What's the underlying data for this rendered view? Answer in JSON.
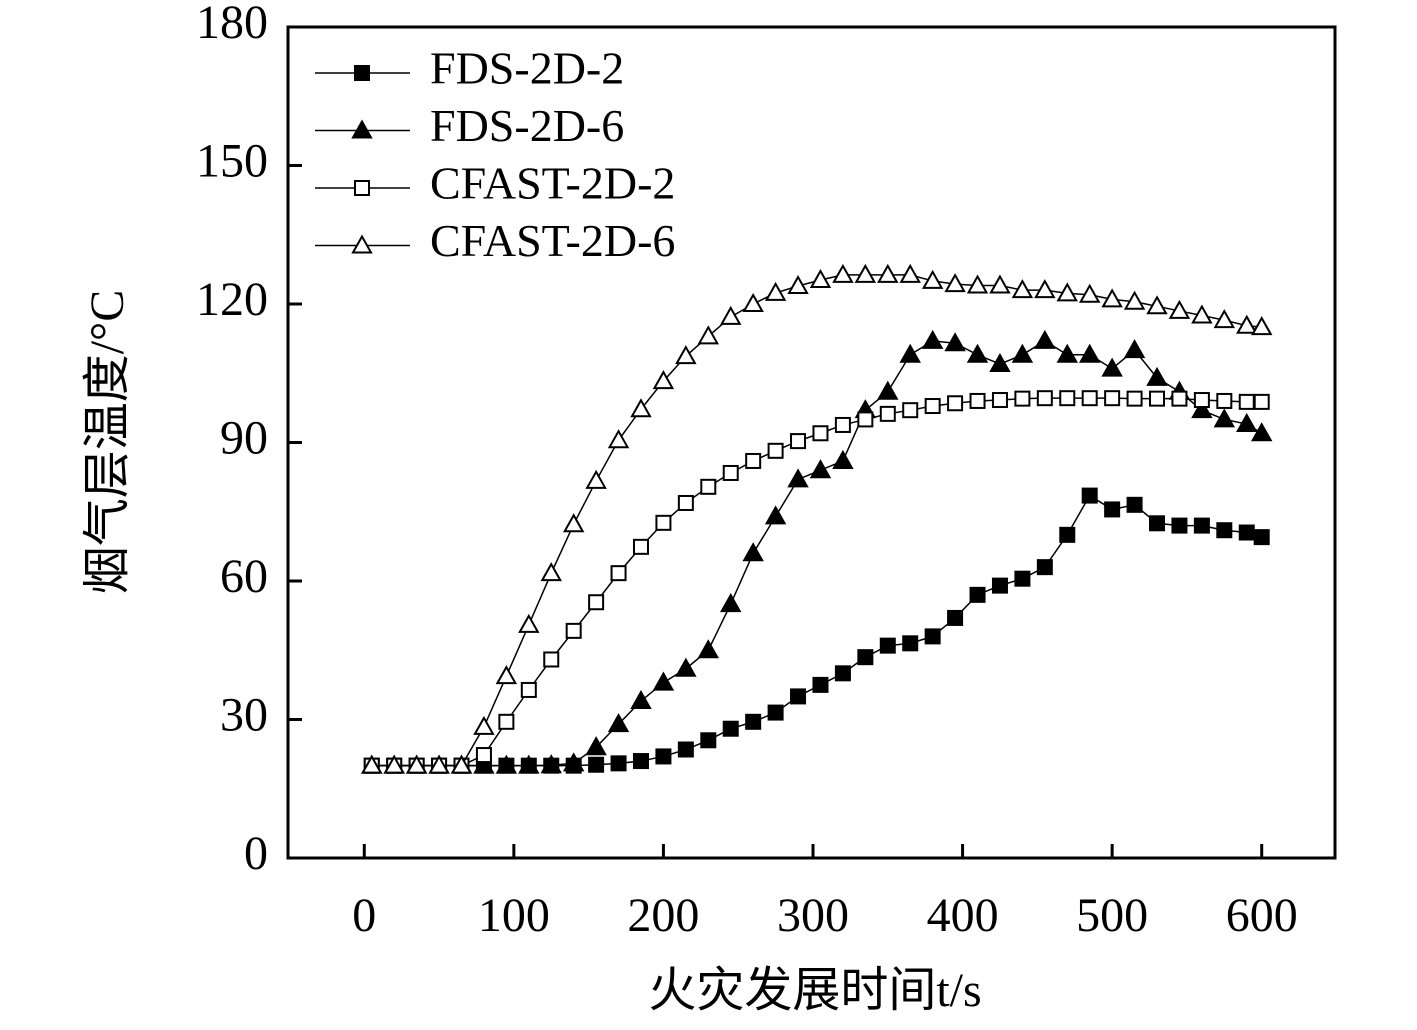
{
  "chart_data": {
    "type": "line",
    "xlabel": "火灾发展时间t/s",
    "ylabel": "烟气层温度/°C",
    "x": [
      5,
      20,
      35,
      50,
      65,
      80,
      95,
      110,
      125,
      140,
      155,
      170,
      185,
      200,
      215,
      230,
      245,
      260,
      275,
      290,
      305,
      320,
      335,
      350,
      365,
      380,
      395,
      410,
      425,
      440,
      455,
      470,
      485,
      500,
      515,
      530,
      545,
      560,
      575,
      590,
      600
    ],
    "series": [
      {
        "name": "FDS-2D-2",
        "color": "#000000",
        "marker": "square",
        "filled": true,
        "values": [
          20,
          20,
          20,
          20,
          20,
          20,
          20,
          20,
          20,
          20,
          20.2,
          20.5,
          21,
          22,
          23.5,
          25.5,
          28,
          29.5,
          31.5,
          35,
          37.5,
          40,
          43.5,
          46,
          46.5,
          48,
          52,
          57,
          59,
          60.5,
          63,
          70,
          78.5,
          75.5,
          76.5,
          72.5,
          72,
          72,
          71,
          70.5,
          69.5
        ]
      },
      {
        "name": "FDS-2D-6",
        "color": "#000000",
        "marker": "triangle",
        "filled": true,
        "values": [
          20,
          20,
          20,
          20,
          20,
          20,
          20,
          20,
          20.1,
          20.5,
          24,
          29,
          34,
          38,
          41,
          45,
          55,
          66,
          74,
          82,
          84,
          86,
          97,
          101,
          109,
          112,
          111.5,
          109,
          107,
          109,
          112,
          109,
          109,
          106,
          110,
          104,
          101,
          97,
          95,
          94,
          92
        ]
      },
      {
        "name": "CFAST-2D-2",
        "color": "#000000",
        "marker": "square",
        "filled": false,
        "values": [
          20,
          20,
          20,
          20,
          20,
          22.3,
          29.5,
          36.4,
          43,
          49.2,
          55.4,
          61.7,
          67.4,
          72.6,
          76.9,
          80.4,
          83.4,
          86,
          88.2,
          90.3,
          92,
          93.8,
          95,
          96.2,
          97,
          97.9,
          98.5,
          99,
          99.2,
          99.5,
          99.6,
          99.6,
          99.6,
          99.6,
          99.5,
          99.5,
          99.5,
          99.2,
          99,
          98.8,
          98.8
        ]
      },
      {
        "name": "CFAST-2D-6",
        "color": "#000000",
        "marker": "triangle",
        "filled": false,
        "values": [
          20,
          20,
          20,
          20,
          20,
          28.4,
          39.4,
          50.5,
          61.7,
          72.3,
          81.7,
          90.5,
          97.2,
          103.3,
          108.7,
          113,
          117.2,
          120,
          122.4,
          123.9,
          125.2,
          126.3,
          126.3,
          126.3,
          126.3,
          125,
          124.3,
          124,
          124,
          123,
          123,
          122.3,
          122,
          121,
          120.5,
          119.5,
          118.5,
          117.5,
          116.5,
          115.3,
          115
        ]
      }
    ],
    "xlim": [
      -51,
      649
    ],
    "xticks": [
      0,
      100,
      200,
      300,
      400,
      500,
      600
    ],
    "ylim": [
      0,
      180
    ],
    "yticks": [
      0,
      30,
      60,
      90,
      120,
      150,
      180
    ],
    "legend": "upper left"
  }
}
